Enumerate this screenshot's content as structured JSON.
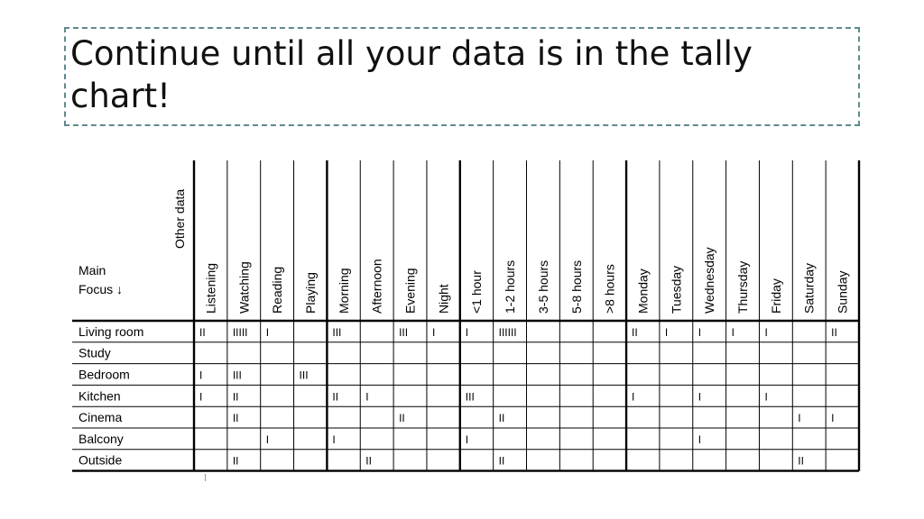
{
  "slide": {
    "title": "Continue until all your data is in the tally chart!"
  },
  "table": {
    "corner_top": "Other data",
    "corner_main": [
      "Main",
      "Focus ↓"
    ],
    "columns": [
      "Listening",
      "Watching",
      "Reading",
      "Playing",
      "Morning",
      "Afternoon",
      "Evening",
      "Night",
      "<1 hour",
      "1-2 hours",
      "3-5 hours",
      "5-8 hours",
      ">8 hours",
      "Monday",
      "Tuesday",
      "Wednesday",
      "Thursday",
      "Friday",
      "Saturday",
      "Sunday"
    ],
    "group_boundaries_after": [
      3,
      7,
      12
    ],
    "rows": [
      {
        "label": "Living room",
        "cells": [
          "II",
          "IIIII",
          "I",
          "",
          "III",
          "",
          "III",
          "I",
          "I",
          "IIIIII",
          "",
          "",
          "",
          "II",
          "I",
          "I",
          "I",
          "I",
          "",
          "II"
        ]
      },
      {
        "label": "Study",
        "cells": [
          "",
          "",
          "",
          "",
          "",
          "",
          "",
          "",
          "",
          "",
          "",
          "",
          "",
          "",
          "",
          "",
          "",
          "",
          "",
          ""
        ]
      },
      {
        "label": "Bedroom",
        "cells": [
          "I",
          "III",
          "",
          "III",
          "",
          "",
          "",
          "",
          "",
          "",
          "",
          "",
          "",
          "",
          "",
          "",
          "",
          "",
          "",
          ""
        ]
      },
      {
        "label": "Kitchen",
        "cells": [
          "I",
          "II",
          "",
          "",
          "II",
          "I",
          "",
          "",
          "III",
          "",
          "",
          "",
          "",
          "I",
          "",
          "I",
          "",
          "I",
          "",
          ""
        ]
      },
      {
        "label": "Cinema",
        "cells": [
          "",
          "II",
          "",
          "",
          "",
          "",
          "II",
          "",
          "",
          "II",
          "",
          "",
          "",
          "",
          "",
          "",
          "",
          "",
          "I",
          "I"
        ]
      },
      {
        "label": "Balcony",
        "cells": [
          "",
          "",
          "I",
          "",
          "I",
          "",
          "",
          "",
          "I",
          "",
          "",
          "",
          "",
          "",
          "",
          "I",
          "",
          "",
          "",
          ""
        ]
      },
      {
        "label": "Outside",
        "cells": [
          "",
          "II",
          "",
          "",
          "",
          "II",
          "",
          "",
          "",
          "II",
          "",
          "",
          "",
          "",
          "",
          "",
          "",
          "",
          "II",
          ""
        ]
      }
    ]
  }
}
